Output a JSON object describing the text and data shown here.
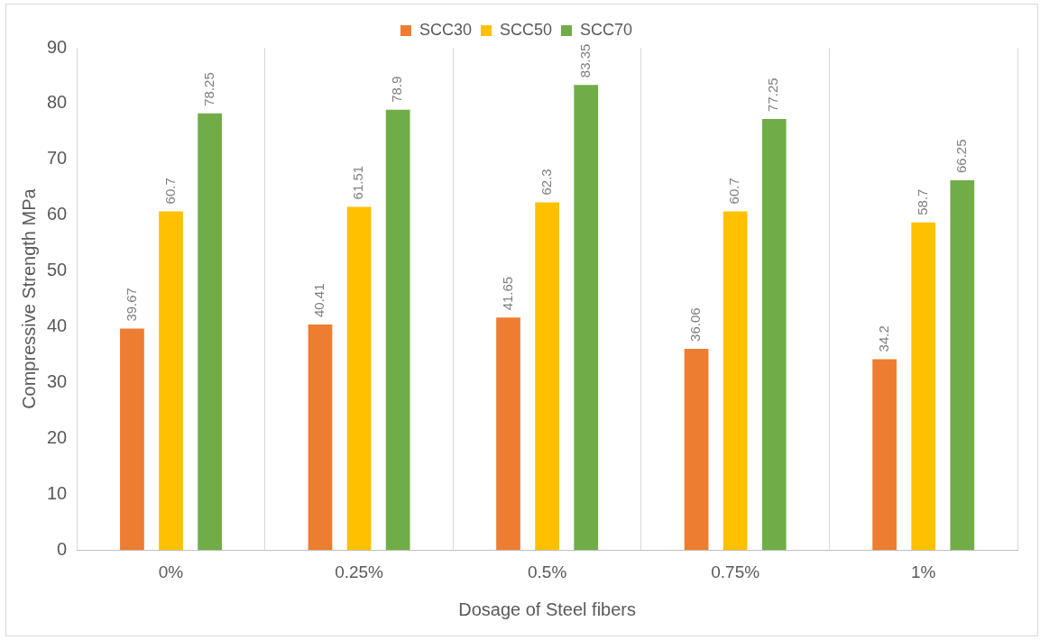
{
  "chart_data": {
    "type": "bar",
    "xlabel": "Dosage of Steel fibers",
    "ylabel": "Compressive Strength MPa",
    "categories": [
      "0%",
      "0.25%",
      "0.5%",
      "0.75%",
      "1%"
    ],
    "series": [
      {
        "name": "SCC30",
        "color": "#ed7d31",
        "values": [
          39.67,
          40.41,
          41.65,
          36.06,
          34.2
        ]
      },
      {
        "name": "SCC50",
        "color": "#ffc000",
        "values": [
          60.7,
          61.51,
          62.3,
          60.7,
          58.7
        ]
      },
      {
        "name": "SCC70",
        "color": "#70ad47",
        "values": [
          78.25,
          78.9,
          83.35,
          77.25,
          66.25
        ]
      }
    ],
    "ylim": [
      0,
      90
    ],
    "yticks": [
      0,
      10,
      20,
      30,
      40,
      50,
      60,
      70,
      80,
      90
    ],
    "grid": "x",
    "legend": "top",
    "data_labels": true
  }
}
